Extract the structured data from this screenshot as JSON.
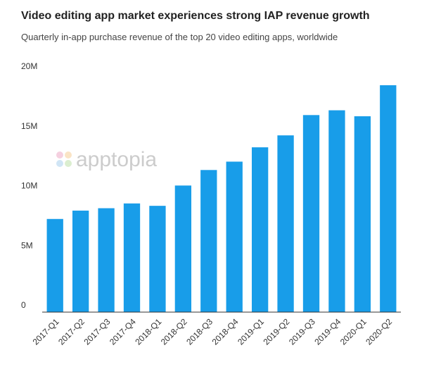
{
  "chart_data": {
    "type": "bar",
    "title": "Video editing app market experiences strong IAP revenue growth",
    "subtitle": "Quarterly in-app purchase revenue of the top 20 video editing apps, worldwide",
    "watermark": "apptopia",
    "categories": [
      "2017-Q1",
      "2017-Q2",
      "2017-Q3",
      "2017-Q4",
      "2018-Q1",
      "2018-Q2",
      "2018-Q3",
      "2018-Q4",
      "2019-Q1",
      "2019-Q2",
      "2019-Q3",
      "2019-Q4",
      "2020-Q1",
      "2020-Q2"
    ],
    "values": [
      7800000,
      8500000,
      8700000,
      9100000,
      8900000,
      10600000,
      11900000,
      12600000,
      13800000,
      14800000,
      16500000,
      16900000,
      16400000,
      19000000
    ],
    "color": "#189de9",
    "ylim": [
      0,
      20000000
    ],
    "yticks": [
      0,
      {
        "value": 5000000,
        "label": "5M"
      },
      {
        "value": 10000000,
        "label": "10M"
      },
      {
        "value": 15000000,
        "label": "15M"
      },
      {
        "value": 20000000,
        "label": "20M"
      }
    ],
    "grid": false
  }
}
